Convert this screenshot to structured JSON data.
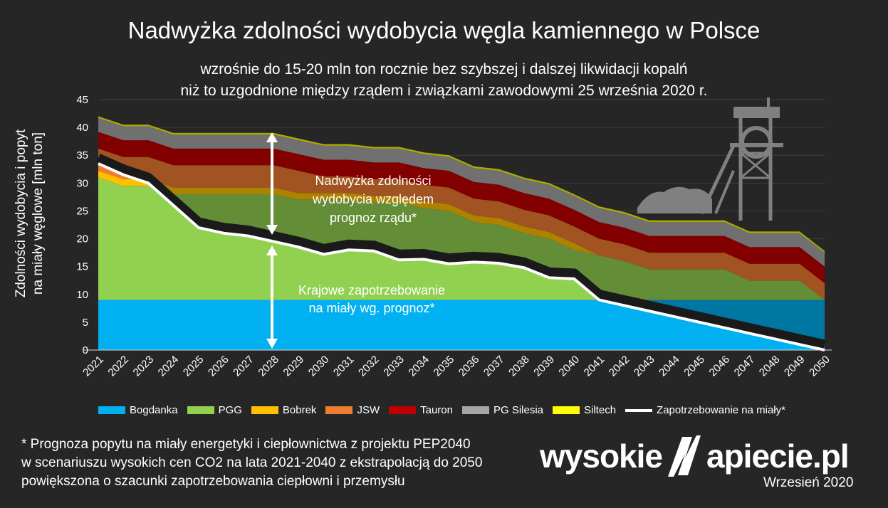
{
  "title": "Nadwyżka zdolności wydobycia węgla kamiennego w Polsce",
  "subtitle_line1": "wzrośnie do 15-20 mln ton rocznie bez szybszej i dalszej likwidacji kopalń",
  "subtitle_line2": "niż to uzgodnione między rządem i związkami zawodowymi 25 września 2020 r.",
  "ylabel_line1": "Zdolności wydobycia i popyt",
  "ylabel_line2": "na miały węglowe [mln ton]",
  "annotation_surplus": [
    "Nadwyżka zdolności",
    "wydobycia względem",
    "prognoz rządu*"
  ],
  "annotation_demand": [
    "Krajowe zapotrzebowanie",
    "na miały wg. prognoz*"
  ],
  "footnote": [
    "* Prognoza popytu na miały energetyki i ciepłownictwa z projektu PEP2040",
    "w scenariuszu wysokich cen CO2 na lata 2021-2040 z ekstrapolacją do 2050",
    "powiększona o szacunki zapotrzebowania ciepłowni i przemysłu"
  ],
  "brand_left": "wysokie",
  "brand_right": "apiecie.pl",
  "date": "Wrzesień 2020",
  "colors": {
    "Bogdanka": "#00b0f0",
    "PGG": "#92d050",
    "Bobrek": "#ffc000",
    "JSW": "#ed7d31",
    "Tauron": "#c00000",
    "PG Silesia": "#a6a6a6",
    "Siltech": "#ffff00",
    "demand": "#ffffff",
    "background": "#262626"
  },
  "legend": [
    {
      "name": "Bogdanka",
      "kind": "area"
    },
    {
      "name": "PGG",
      "kind": "area"
    },
    {
      "name": "Bobrek",
      "kind": "area"
    },
    {
      "name": "JSW",
      "kind": "area"
    },
    {
      "name": "Tauron",
      "kind": "area"
    },
    {
      "name": "PG Silesia",
      "kind": "area"
    },
    {
      "name": "Siltech",
      "kind": "area"
    },
    {
      "name": "Zapotrzebowanie na miały*",
      "kind": "line"
    }
  ],
  "chart_data": {
    "type": "area",
    "stacked": true,
    "ylim": [
      0,
      45
    ],
    "yticks": [
      0,
      5,
      10,
      15,
      20,
      25,
      30,
      35,
      40,
      45
    ],
    "x": [
      "2021",
      "2022",
      "2023",
      "2024",
      "2025",
      "2026",
      "2027",
      "2028",
      "2029",
      "2030",
      "2031",
      "2032",
      "2033",
      "2034",
      "2035",
      "2036",
      "2037",
      "2038",
      "2039",
      "2040",
      "2041",
      "2042",
      "2043",
      "2044",
      "2045",
      "2046",
      "2047",
      "2048",
      "2049",
      "2050"
    ],
    "series": [
      {
        "name": "Bogdanka",
        "values": [
          9,
          9,
          9,
          9,
          9,
          9,
          9,
          9,
          9,
          9,
          9,
          9,
          9,
          9,
          9,
          9,
          9,
          9,
          9,
          9,
          9,
          9,
          9,
          9,
          9,
          9,
          9,
          9,
          9,
          9
        ]
      },
      {
        "name": "PGG",
        "values": [
          22,
          20.5,
          20.5,
          19,
          19,
          19,
          19,
          19,
          18,
          18,
          18,
          17.5,
          17.5,
          16.5,
          16,
          14,
          13.5,
          12,
          11,
          9,
          8,
          7,
          5.5,
          5.5,
          5.5,
          5.5,
          3.5,
          3.5,
          3.5,
          0
        ]
      },
      {
        "name": "Bobrek",
        "values": [
          1.2,
          1.2,
          1.2,
          1.2,
          1.2,
          1.2,
          1.2,
          1.2,
          1.2,
          1.2,
          1.2,
          1.2,
          1.2,
          1.2,
          1.2,
          1.2,
          1.2,
          1.2,
          1.2,
          1.2,
          0,
          0,
          0,
          0,
          0,
          0,
          0,
          0,
          0,
          0
        ]
      },
      {
        "name": "JSW",
        "values": [
          4,
          4,
          4,
          4,
          4,
          4,
          4,
          4,
          4,
          3,
          3,
          3,
          3,
          3,
          3,
          3,
          3,
          3,
          3,
          3,
          3,
          3,
          3,
          3,
          3,
          3,
          3,
          3,
          3,
          3
        ]
      },
      {
        "name": "Tauron",
        "values": [
          3,
          3,
          3,
          3,
          3,
          3,
          3,
          3,
          3,
          3,
          3,
          3,
          3,
          3,
          3,
          3,
          3,
          3,
          3,
          3,
          3,
          3,
          3,
          3,
          3,
          3,
          3,
          3,
          3,
          3
        ]
      },
      {
        "name": "PG Silesia",
        "values": [
          2.5,
          2.5,
          2.5,
          2.5,
          2.5,
          2.5,
          2.5,
          2.5,
          2.5,
          2.5,
          2.5,
          2.5,
          2.5,
          2.5,
          2.5,
          2.5,
          2.5,
          2.5,
          2.5,
          2.5,
          2.5,
          2.5,
          2.5,
          2.5,
          2.5,
          2.5,
          2.5,
          2.5,
          2.5,
          2.5
        ]
      },
      {
        "name": "Siltech",
        "values": [
          0.3,
          0.3,
          0.3,
          0.3,
          0.3,
          0.3,
          0.3,
          0.3,
          0.3,
          0.3,
          0.3,
          0.3,
          0.3,
          0.3,
          0.3,
          0.3,
          0.3,
          0.3,
          0.3,
          0.3,
          0.3,
          0.3,
          0.3,
          0.3,
          0.3,
          0.3,
          0.3,
          0.3,
          0.3,
          0.3
        ]
      },
      {
        "name": "Zapotrzebowanie na miały*",
        "kind": "line",
        "values": [
          33.5,
          31.5,
          30,
          26,
          22,
          21,
          20.5,
          19.5,
          18.5,
          17.2,
          18,
          17.8,
          16.2,
          16.3,
          15.5,
          15.8,
          15.6,
          14.8,
          13,
          12.8,
          9,
          8,
          7,
          6,
          5,
          4,
          3,
          2,
          1,
          0
        ]
      }
    ]
  }
}
